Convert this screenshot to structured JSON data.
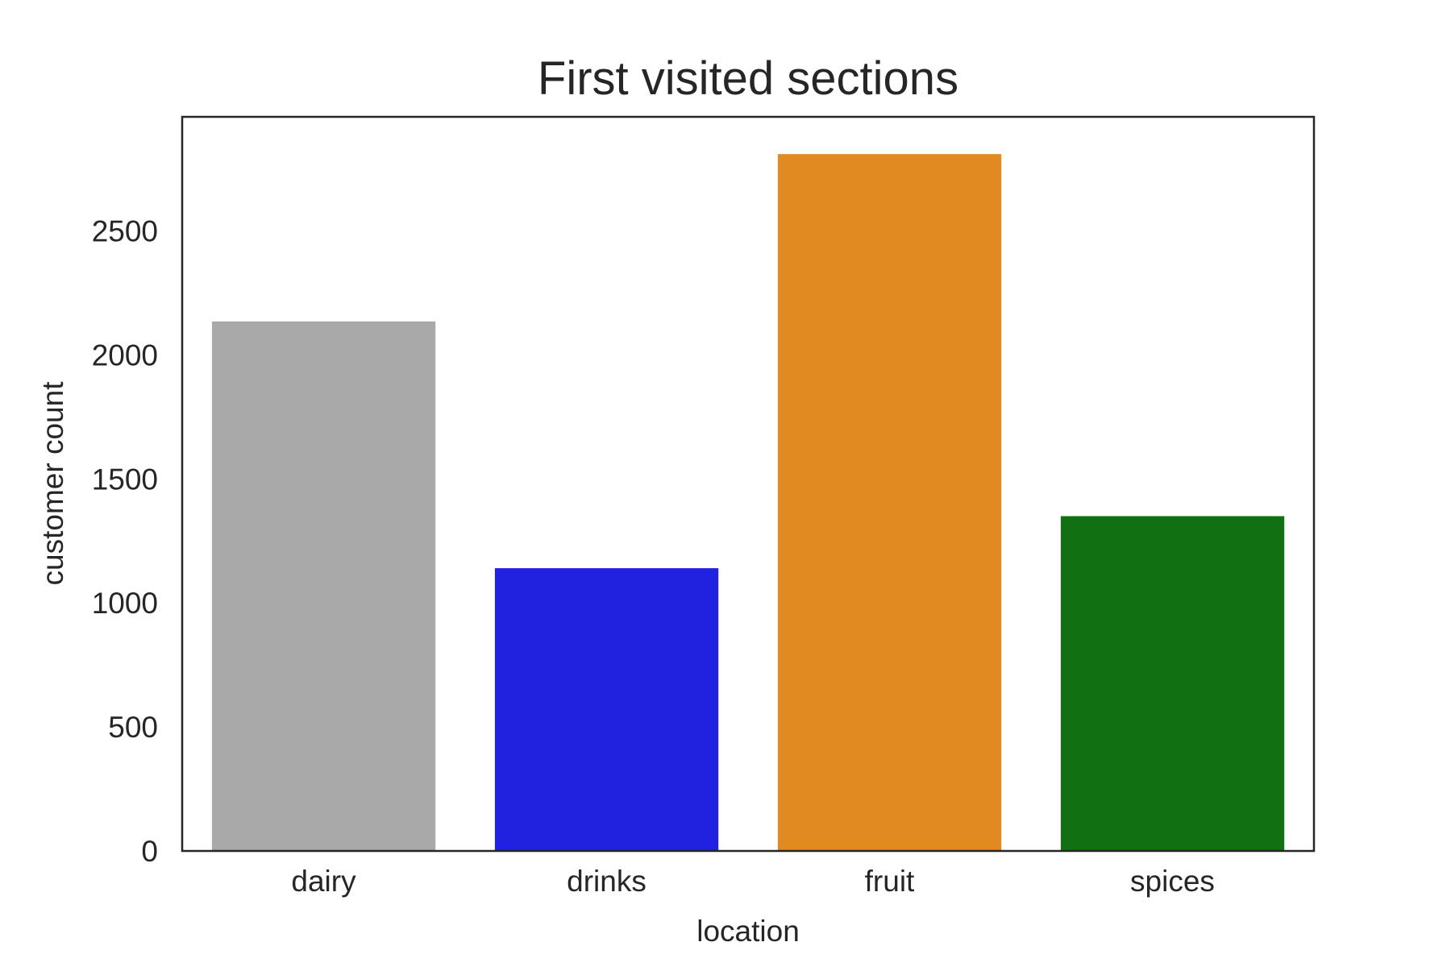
{
  "chart_data": {
    "type": "bar",
    "title": "First visited sections",
    "xlabel": "location",
    "ylabel": "customer count",
    "categories": [
      "dairy",
      "drinks",
      "fruit",
      "spices"
    ],
    "values": [
      2135,
      1140,
      2810,
      1350
    ],
    "colors": [
      "#a9a9a9",
      "#2121e0",
      "#e08a21",
      "#117011"
    ],
    "ylim": [
      0,
      2960
    ],
    "yticks": [
      0,
      500,
      1000,
      1500,
      2000,
      2500
    ],
    "grid": false,
    "legend": "none"
  }
}
